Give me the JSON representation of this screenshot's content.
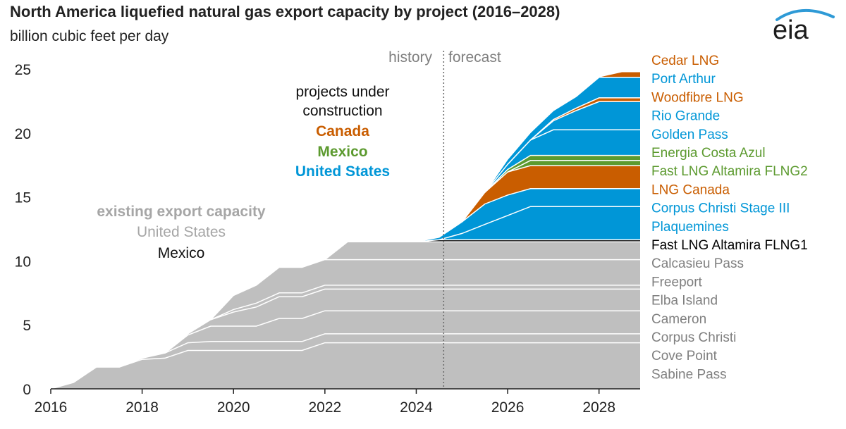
{
  "title": "North America liquefied natural gas export capacity by project (2016–2028)",
  "subtitle": "billion cubic feet per day",
  "logo_text": "eia",
  "colors": {
    "existing": "#bfbfbf",
    "us": "#0096d7",
    "canada": "#c95d00",
    "mexico": "#5c9a2f",
    "mexico_existing": "#000000",
    "existing_label": "#999999",
    "existing_project_label": "#7f7f7f"
  },
  "annotations": {
    "history": "history",
    "forecast": "forecast",
    "construction_line1": "projects under",
    "construction_line2": "construction",
    "construction_canada": "Canada",
    "construction_mexico": "Mexico",
    "construction_us": "United States",
    "existing_line1": "existing export capacity",
    "existing_us": "United States",
    "existing_mexico": "Mexico"
  },
  "chart_data": {
    "type": "area",
    "stacked": true,
    "title": "North America liquefied natural gas export capacity by project (2016–2028)",
    "ylabel": "billion cubic feet per day",
    "xlim": [
      2016,
      2028.9
    ],
    "ylim": [
      0,
      25
    ],
    "xticks": [
      2016,
      2018,
      2020,
      2022,
      2024,
      2026,
      2028
    ],
    "yticks": [
      0,
      5,
      10,
      15,
      20,
      25
    ],
    "forecast_start": 2024.6,
    "x": [
      2016,
      2016.5,
      2017,
      2017.5,
      2018,
      2018.5,
      2019,
      2019.5,
      2020,
      2020.5,
      2021,
      2021.5,
      2022,
      2022.5,
      2023,
      2023.5,
      2024,
      2024.5,
      2025,
      2025.5,
      2026,
      2026.5,
      2027,
      2027.5,
      2028,
      2028.5,
      2028.9
    ],
    "series": [
      {
        "name": "Sabine Pass",
        "group": "existing",
        "values": [
          0,
          0.5,
          1.7,
          1.7,
          2.3,
          2.4,
          3.0,
          3.0,
          3.0,
          3.0,
          3.0,
          3.0,
          3.6,
          3.6,
          3.6,
          3.6,
          3.6,
          3.6,
          3.6,
          3.6,
          3.6,
          3.6,
          3.6,
          3.6,
          3.6,
          3.6,
          3.6
        ]
      },
      {
        "name": "Cove Point",
        "group": "existing",
        "values": [
          0,
          0,
          0,
          0,
          0.1,
          0.4,
          0.6,
          0.7,
          0.7,
          0.7,
          0.7,
          0.7,
          0.7,
          0.7,
          0.7,
          0.7,
          0.7,
          0.7,
          0.7,
          0.7,
          0.7,
          0.7,
          0.7,
          0.7,
          0.7,
          0.7,
          0.7
        ]
      },
      {
        "name": "Corpus Christi",
        "group": "existing",
        "values": [
          0,
          0,
          0,
          0,
          0,
          0,
          0.6,
          1.2,
          1.2,
          1.2,
          1.8,
          1.8,
          1.8,
          1.8,
          1.8,
          1.8,
          1.8,
          1.8,
          1.8,
          1.8,
          1.8,
          1.8,
          1.8,
          1.8,
          1.8,
          1.8,
          1.8
        ]
      },
      {
        "name": "Cameron",
        "group": "existing",
        "values": [
          0,
          0,
          0,
          0,
          0,
          0,
          0.1,
          0.5,
          1.1,
          1.5,
          1.7,
          1.7,
          1.7,
          1.7,
          1.7,
          1.7,
          1.7,
          1.7,
          1.7,
          1.7,
          1.7,
          1.7,
          1.7,
          1.7,
          1.7,
          1.7,
          1.7
        ]
      },
      {
        "name": "Elba Island",
        "group": "existing",
        "values": [
          0,
          0,
          0,
          0,
          0,
          0,
          0,
          0,
          0.2,
          0.3,
          0.3,
          0.3,
          0.3,
          0.3,
          0.3,
          0.3,
          0.3,
          0.3,
          0.3,
          0.3,
          0.3,
          0.3,
          0.3,
          0.3,
          0.3,
          0.3,
          0.3
        ]
      },
      {
        "name": "Freeport",
        "group": "existing",
        "values": [
          0,
          0,
          0,
          0,
          0,
          0,
          0,
          0,
          1.1,
          1.4,
          2.0,
          2.0,
          2.0,
          2.0,
          2.0,
          2.0,
          2.0,
          2.0,
          2.0,
          2.0,
          2.0,
          2.0,
          2.0,
          2.0,
          2.0,
          2.0,
          2.0
        ]
      },
      {
        "name": "Calcasieu Pass",
        "group": "existing",
        "values": [
          0,
          0,
          0,
          0,
          0,
          0,
          0,
          0,
          0,
          0,
          0,
          0,
          0,
          1.4,
          1.4,
          1.4,
          1.4,
          1.4,
          1.4,
          1.4,
          1.4,
          1.4,
          1.4,
          1.4,
          1.4,
          1.4,
          1.4
        ]
      },
      {
        "name": "Fast LNG Altamira FLNG1",
        "group": "mexico_existing",
        "values": [
          0,
          0,
          0,
          0,
          0,
          0,
          0,
          0,
          0,
          0,
          0,
          0,
          0,
          0,
          0,
          0,
          0,
          0.15,
          0.15,
          0.15,
          0.15,
          0.15,
          0.15,
          0.15,
          0.15,
          0.15,
          0.15
        ]
      },
      {
        "name": "Plaquemines",
        "group": "us",
        "values": [
          0,
          0,
          0,
          0,
          0,
          0,
          0,
          0,
          0,
          0,
          0,
          0,
          0,
          0,
          0,
          0,
          0,
          0,
          0.5,
          1.2,
          1.9,
          2.6,
          2.6,
          2.6,
          2.6,
          2.6,
          2.6
        ]
      },
      {
        "name": "Corpus Christi Stage III",
        "group": "us",
        "values": [
          0,
          0,
          0,
          0,
          0,
          0,
          0,
          0,
          0,
          0,
          0,
          0,
          0,
          0,
          0,
          0,
          0,
          0.2,
          0.9,
          1.6,
          1.6,
          1.4,
          1.4,
          1.4,
          1.4,
          1.4,
          1.4
        ]
      },
      {
        "name": "LNG Canada",
        "group": "canada",
        "values": [
          0,
          0,
          0,
          0,
          0,
          0,
          0,
          0,
          0,
          0,
          0,
          0,
          0,
          0,
          0,
          0,
          0,
          0,
          0,
          0.9,
          1.8,
          1.8,
          1.8,
          1.8,
          1.8,
          1.8,
          1.8
        ]
      },
      {
        "name": "Fast LNG Altamira FLNG2",
        "group": "mexico",
        "values": [
          0,
          0,
          0,
          0,
          0,
          0,
          0,
          0,
          0,
          0,
          0,
          0,
          0,
          0,
          0,
          0,
          0,
          0,
          0,
          0,
          0,
          0.4,
          0.4,
          0.4,
          0.4,
          0.4,
          0.4
        ]
      },
      {
        "name": "Energia Costa Azul",
        "group": "mexico",
        "values": [
          0,
          0,
          0,
          0,
          0,
          0,
          0,
          0,
          0,
          0,
          0,
          0,
          0,
          0,
          0,
          0,
          0,
          0,
          0,
          0,
          0.2,
          0.4,
          0.4,
          0.4,
          0.4,
          0.4,
          0.4
        ]
      },
      {
        "name": "Golden Pass",
        "group": "us",
        "values": [
          0,
          0,
          0,
          0,
          0,
          0,
          0,
          0,
          0,
          0,
          0,
          0,
          0,
          0,
          0,
          0,
          0,
          0,
          0,
          0,
          0.4,
          1.2,
          2.0,
          2.0,
          2.0,
          2.0,
          2.0
        ]
      },
      {
        "name": "Rio Grande",
        "group": "us",
        "values": [
          0,
          0,
          0,
          0,
          0,
          0,
          0,
          0,
          0,
          0,
          0,
          0,
          0,
          0,
          0,
          0,
          0,
          0,
          0,
          0,
          0,
          0,
          0.7,
          1.5,
          2.2,
          2.2,
          2.2
        ]
      },
      {
        "name": "Woodfibre LNG",
        "group": "canada",
        "values": [
          0,
          0,
          0,
          0,
          0,
          0,
          0,
          0,
          0,
          0,
          0,
          0,
          0,
          0,
          0,
          0,
          0,
          0,
          0,
          0,
          0,
          0,
          0.1,
          0.2,
          0.3,
          0.3,
          0.3
        ]
      },
      {
        "name": "Port Arthur",
        "group": "us",
        "values": [
          0,
          0,
          0,
          0,
          0,
          0,
          0,
          0,
          0,
          0,
          0,
          0,
          0,
          0,
          0,
          0,
          0,
          0,
          0,
          0,
          0.4,
          0.6,
          0.7,
          0.9,
          1.6,
          1.6,
          1.6
        ]
      },
      {
        "name": "Cedar LNG",
        "group": "canada",
        "values": [
          0,
          0,
          0,
          0,
          0,
          0,
          0,
          0,
          0,
          0,
          0,
          0,
          0,
          0,
          0,
          0,
          0,
          0,
          0,
          0,
          0,
          0,
          0,
          0,
          0,
          0.4,
          0.4
        ]
      }
    ]
  }
}
